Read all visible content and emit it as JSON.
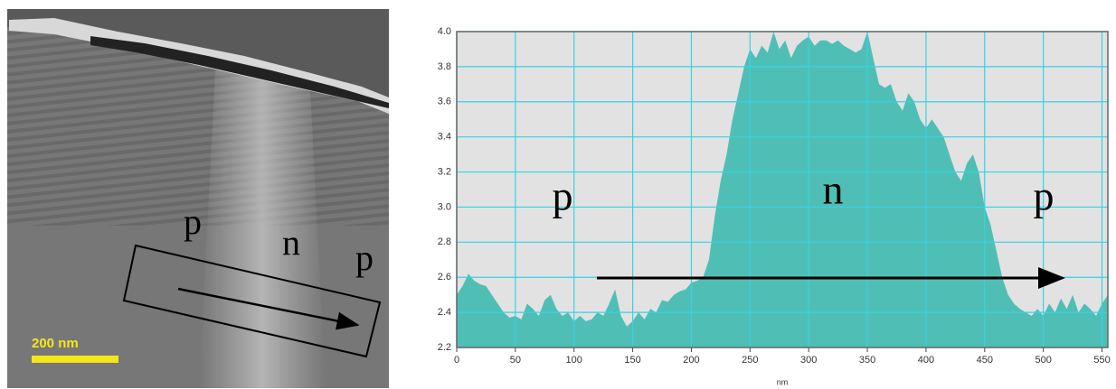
{
  "image": {
    "labels": [
      "p",
      "n",
      "p"
    ],
    "scale_bar": "200 nm"
  },
  "chart_data": {
    "type": "area",
    "x_label": "nm",
    "color": "#4fbfb5",
    "grid": true,
    "annotations": [
      "p",
      "n",
      "p"
    ],
    "x": [
      0,
      5,
      10,
      15,
      20,
      25,
      30,
      35,
      40,
      45,
      50,
      55,
      60,
      65,
      70,
      75,
      80,
      85,
      90,
      95,
      100,
      105,
      110,
      115,
      120,
      125,
      130,
      135,
      140,
      145,
      150,
      155,
      160,
      165,
      170,
      175,
      180,
      185,
      190,
      195,
      200,
      205,
      210,
      215,
      220,
      225,
      230,
      235,
      240,
      245,
      250,
      255,
      260,
      265,
      270,
      275,
      280,
      285,
      290,
      295,
      300,
      305,
      310,
      315,
      320,
      325,
      330,
      335,
      340,
      345,
      350,
      355,
      360,
      365,
      370,
      375,
      380,
      385,
      390,
      395,
      400,
      405,
      410,
      415,
      420,
      425,
      430,
      435,
      440,
      445,
      450,
      455,
      460,
      465,
      470,
      475,
      480,
      485,
      490,
      495,
      500,
      505,
      510,
      515,
      520,
      525,
      530,
      535,
      540,
      545,
      550,
      555
    ],
    "values": [
      2.5,
      2.55,
      2.62,
      2.58,
      2.56,
      2.55,
      2.5,
      2.45,
      2.4,
      2.37,
      2.38,
      2.36,
      2.45,
      2.42,
      2.38,
      2.47,
      2.5,
      2.42,
      2.38,
      2.4,
      2.35,
      2.38,
      2.35,
      2.36,
      2.4,
      2.38,
      2.45,
      2.53,
      2.38,
      2.32,
      2.35,
      2.4,
      2.36,
      2.42,
      2.4,
      2.47,
      2.46,
      2.5,
      2.52,
      2.53,
      2.57,
      2.58,
      2.6,
      2.7,
      2.95,
      3.15,
      3.3,
      3.5,
      3.65,
      3.8,
      3.9,
      3.85,
      3.92,
      3.88,
      4.0,
      3.9,
      3.95,
      3.85,
      3.92,
      3.95,
      3.97,
      3.92,
      3.95,
      3.95,
      3.93,
      3.95,
      3.92,
      3.9,
      3.88,
      3.9,
      4.0,
      3.85,
      3.7,
      3.68,
      3.7,
      3.6,
      3.55,
      3.65,
      3.6,
      3.5,
      3.45,
      3.5,
      3.45,
      3.4,
      3.3,
      3.2,
      3.15,
      3.25,
      3.3,
      3.2,
      3.0,
      2.9,
      2.75,
      2.6,
      2.5,
      2.45,
      2.42,
      2.4,
      2.38,
      2.42,
      2.38,
      2.45,
      2.4,
      2.48,
      2.42,
      2.5,
      2.4,
      2.45,
      2.42,
      2.38,
      2.45,
      2.5
    ],
    "xlim": [
      0,
      555
    ],
    "xticks": [
      0,
      50,
      100,
      150,
      200,
      250,
      300,
      350,
      400,
      450,
      500,
      550
    ],
    "ylim": [
      2.2,
      4.0
    ],
    "yticks": [
      {
        "value": 2.2,
        "label": "2.2"
      },
      {
        "value": 2.4,
        "label": "2.4"
      },
      {
        "value": 2.6,
        "label": "2.6"
      },
      {
        "value": 2.8,
        "label": "2.8"
      },
      {
        "value": 3.0,
        "label": "3.0"
      },
      {
        "value": 3.2,
        "label": "3.2"
      },
      {
        "value": 3.4,
        "label": "3.4"
      },
      {
        "value": 3.6,
        "label": "3.6"
      },
      {
        "value": 3.8,
        "label": "3.8"
      },
      {
        "value": 4.0,
        "label": "4.0"
      }
    ]
  }
}
